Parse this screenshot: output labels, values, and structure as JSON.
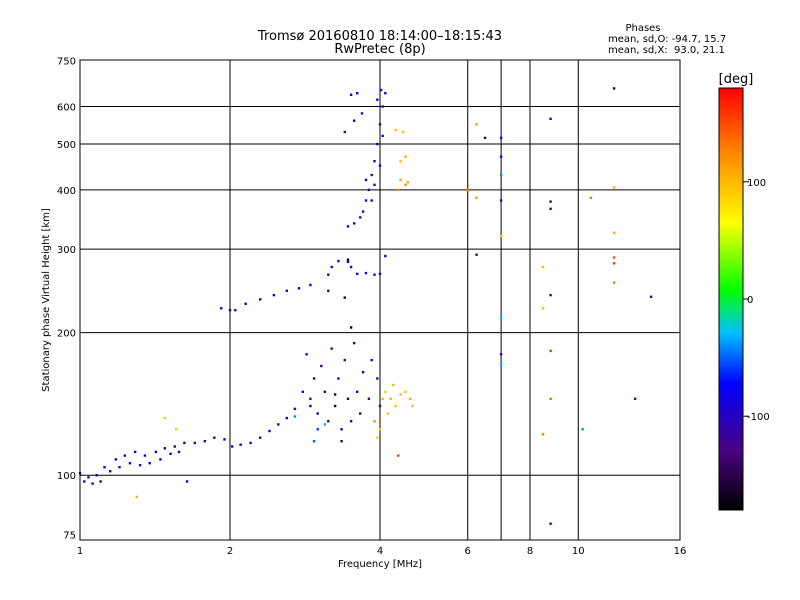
{
  "chart_data": {
    "type": "scatter",
    "title": "Tromsø 20160810 18:14:00–18:15:43",
    "subtitle": "RwPretec (8p)",
    "stats": {
      "heading": "Phases",
      "line1": "mean, sd,O: -94.7, 15.7",
      "line2": "mean, sd,X:  93.0, 21.1"
    },
    "xlabel": "Frequency [MHz]",
    "ylabel": "Stationary phase Virtual Height [km]",
    "x_scale": "log2",
    "y_scale": "log",
    "xlim": [
      1,
      16
    ],
    "ylim": [
      73,
      752
    ],
    "x_ticks": [
      1,
      2,
      4,
      6,
      8,
      10,
      16
    ],
    "x_tick_labels": [
      "1",
      "2",
      "4",
      "6",
      "8",
      "10",
      "16"
    ],
    "x_grid": [
      2,
      4,
      6,
      7,
      8,
      10
    ],
    "y_ticks": [
      75,
      100,
      200,
      300,
      400,
      500,
      600,
      750
    ],
    "y_tick_labels": [
      "75",
      "100",
      "200",
      "300",
      "400",
      "500",
      "600",
      "750"
    ],
    "y_grid": [
      100,
      200,
      300,
      400,
      500,
      600
    ],
    "grid": true,
    "colorbar": {
      "label": "[deg]",
      "range": [
        -180,
        180
      ],
      "ticks": [
        100,
        0,
        -100
      ],
      "tick_labels": [
        "100",
        "0",
        "-100"
      ]
    },
    "series": [
      {
        "marker": "dot",
        "color_by": "phase",
        "points": [
          [
            1.0,
            101,
            -95
          ],
          [
            1.02,
            97,
            -90
          ],
          [
            1.04,
            99,
            -100
          ],
          [
            1.06,
            96,
            -95
          ],
          [
            1.08,
            100,
            -88
          ],
          [
            1.1,
            97,
            -105
          ],
          [
            1.12,
            104,
            -92
          ],
          [
            1.15,
            102,
            -98
          ],
          [
            1.18,
            108,
            -90
          ],
          [
            1.2,
            104,
            -100
          ],
          [
            1.23,
            110,
            -95
          ],
          [
            1.26,
            106,
            -85
          ],
          [
            1.29,
            112,
            -100
          ],
          [
            1.32,
            105,
            -110
          ],
          [
            1.35,
            110,
            -95
          ],
          [
            1.38,
            106,
            -90
          ],
          [
            1.42,
            112,
            -100
          ],
          [
            1.45,
            108,
            -92
          ],
          [
            1.48,
            114,
            -97
          ],
          [
            1.52,
            111,
            -90
          ],
          [
            1.55,
            115,
            -105
          ],
          [
            1.58,
            112,
            -95
          ],
          [
            1.62,
            117,
            -88
          ],
          [
            1.64,
            97,
            -100
          ],
          [
            1.3,
            90,
            100
          ],
          [
            1.48,
            132,
            95
          ],
          [
            1.56,
            125,
            40
          ],
          [
            1.7,
            117,
            -100
          ],
          [
            1.78,
            118,
            -95
          ],
          [
            1.86,
            120,
            -98
          ],
          [
            1.95,
            119,
            -92
          ],
          [
            2.02,
            115,
            -100
          ],
          [
            2.1,
            116,
            -95
          ],
          [
            2.2,
            117,
            -97
          ],
          [
            2.3,
            120,
            -90
          ],
          [
            2.4,
            124,
            -98
          ],
          [
            2.5,
            128,
            -95
          ],
          [
            2.6,
            132,
            -100
          ],
          [
            2.7,
            138,
            -95
          ],
          [
            1.92,
            225,
            -100
          ],
          [
            2.0,
            223,
            -95
          ],
          [
            2.05,
            223,
            -92
          ],
          [
            2.15,
            230,
            -98
          ],
          [
            2.3,
            235,
            -95
          ],
          [
            2.45,
            240,
            -97
          ],
          [
            2.6,
            245,
            -100
          ],
          [
            2.75,
            248,
            -95
          ],
          [
            2.9,
            252,
            -93
          ],
          [
            3.15,
            265,
            -100
          ],
          [
            3.3,
            283,
            -95
          ],
          [
            3.45,
            282,
            -98
          ],
          [
            3.5,
            275,
            -92
          ],
          [
            3.6,
            266,
            -97
          ],
          [
            3.75,
            267,
            -100
          ],
          [
            3.9,
            265,
            -95
          ],
          [
            4.0,
            266,
            -98
          ],
          [
            3.2,
            275,
            -90
          ],
          [
            3.15,
            245,
            -140
          ],
          [
            3.4,
            237,
            -150
          ],
          [
            2.8,
            150,
            -100
          ],
          [
            2.85,
            180,
            -110
          ],
          [
            2.9,
            145,
            -130
          ],
          [
            2.95,
            160,
            -150
          ],
          [
            3.0,
            135,
            -95
          ],
          [
            3.05,
            170,
            -120
          ],
          [
            3.1,
            150,
            -140
          ],
          [
            3.15,
            130,
            -100
          ],
          [
            3.2,
            185,
            -115
          ],
          [
            3.25,
            140,
            -160
          ],
          [
            3.3,
            160,
            -95
          ],
          [
            3.35,
            125,
            -110
          ],
          [
            3.4,
            175,
            -135
          ],
          [
            3.45,
            145,
            -150
          ],
          [
            3.5,
            130,
            -100
          ],
          [
            3.55,
            190,
            -120
          ],
          [
            3.6,
            150,
            -95
          ],
          [
            3.65,
            135,
            -140
          ],
          [
            3.7,
            165,
            -110
          ],
          [
            3.8,
            145,
            -130
          ],
          [
            3.85,
            175,
            -100
          ],
          [
            3.9,
            130,
            -150
          ],
          [
            3.95,
            160,
            -95
          ],
          [
            4.0,
            140,
            -115
          ],
          [
            2.9,
            140,
            -70
          ],
          [
            2.7,
            133,
            -40
          ],
          [
            3.0,
            125,
            -60
          ],
          [
            3.1,
            128,
            -30
          ],
          [
            2.95,
            118,
            -50
          ],
          [
            4.05,
            145,
            100
          ],
          [
            4.1,
            150,
            90
          ],
          [
            4.15,
            135,
            95
          ],
          [
            4.2,
            145,
            105
          ],
          [
            4.25,
            155,
            100
          ],
          [
            4.3,
            140,
            92
          ],
          [
            4.4,
            148,
            98
          ],
          [
            4.5,
            150,
            95
          ],
          [
            4.6,
            145,
            102
          ],
          [
            4.65,
            140,
            97
          ],
          [
            3.9,
            130,
            100
          ],
          [
            4.0,
            125,
            95
          ],
          [
            3.95,
            120,
            90
          ],
          [
            4.35,
            110,
            150
          ],
          [
            3.25,
            148,
            -165
          ],
          [
            3.35,
            118,
            -150
          ],
          [
            3.5,
            205,
            -170
          ],
          [
            3.45,
            285,
            -170
          ],
          [
            4.1,
            290,
            -100
          ],
          [
            3.45,
            335,
            -100
          ],
          [
            3.55,
            340,
            -95
          ],
          [
            3.65,
            350,
            -98
          ],
          [
            3.7,
            360,
            -100
          ],
          [
            3.75,
            380,
            -95
          ],
          [
            3.8,
            400,
            -98
          ],
          [
            3.85,
            430,
            -100
          ],
          [
            3.9,
            460,
            -95
          ],
          [
            3.95,
            500,
            -97
          ],
          [
            4.0,
            550,
            -100
          ],
          [
            4.05,
            600,
            -95
          ],
          [
            4.1,
            640,
            -98
          ],
          [
            3.95,
            620,
            -100
          ],
          [
            4.02,
            650,
            -95
          ],
          [
            3.9,
            410,
            -100
          ],
          [
            3.85,
            380,
            -95
          ],
          [
            3.75,
            420,
            -98
          ],
          [
            4.0,
            450,
            -100
          ],
          [
            4.05,
            520,
            -95
          ],
          [
            3.4,
            530,
            -100
          ],
          [
            3.55,
            560,
            -95
          ],
          [
            3.68,
            580,
            -98
          ],
          [
            3.5,
            635,
            -100
          ],
          [
            3.6,
            640,
            -95
          ],
          [
            4.3,
            535,
            100
          ],
          [
            4.45,
            530,
            95
          ],
          [
            4.5,
            470,
            105
          ],
          [
            4.4,
            460,
            100
          ],
          [
            4.4,
            420,
            110
          ],
          [
            4.5,
            410,
            120
          ],
          [
            4.35,
            400,
            115
          ],
          [
            4.55,
            415,
            110
          ],
          [
            6.0,
            400,
            130
          ],
          [
            6.25,
            550,
            110
          ],
          [
            6.25,
            385,
            115
          ],
          [
            6.25,
            292,
            -100
          ],
          [
            6.5,
            515,
            -140
          ],
          [
            7.0,
            515,
            -100
          ],
          [
            7.0,
            470,
            -95
          ],
          [
            7.0,
            430,
            -40
          ],
          [
            7.0,
            380,
            -100
          ],
          [
            7.0,
            320,
            100
          ],
          [
            7.0,
            215,
            -30
          ],
          [
            7.0,
            180,
            -100
          ],
          [
            7.0,
            172,
            -30
          ],
          [
            8.5,
            275,
            100
          ],
          [
            8.5,
            225,
            100
          ],
          [
            8.5,
            122,
            130
          ],
          [
            8.8,
            378,
            -110
          ],
          [
            8.8,
            365,
            -100
          ],
          [
            8.8,
            240,
            -100
          ],
          [
            8.8,
            183,
            160
          ],
          [
            8.8,
            145,
            140
          ],
          [
            8.8,
            79,
            -100
          ],
          [
            8.8,
            565,
            -100
          ],
          [
            10.2,
            125,
            -40
          ],
          [
            10.6,
            385,
            130
          ],
          [
            11.8,
            655,
            -160
          ],
          [
            11.8,
            405,
            100
          ],
          [
            11.8,
            325,
            110
          ],
          [
            11.8,
            288,
            150
          ],
          [
            11.8,
            280,
            160
          ],
          [
            11.8,
            255,
            130
          ],
          [
            13.0,
            145,
            -130
          ],
          [
            14.0,
            238,
            -100
          ]
        ]
      }
    ]
  }
}
